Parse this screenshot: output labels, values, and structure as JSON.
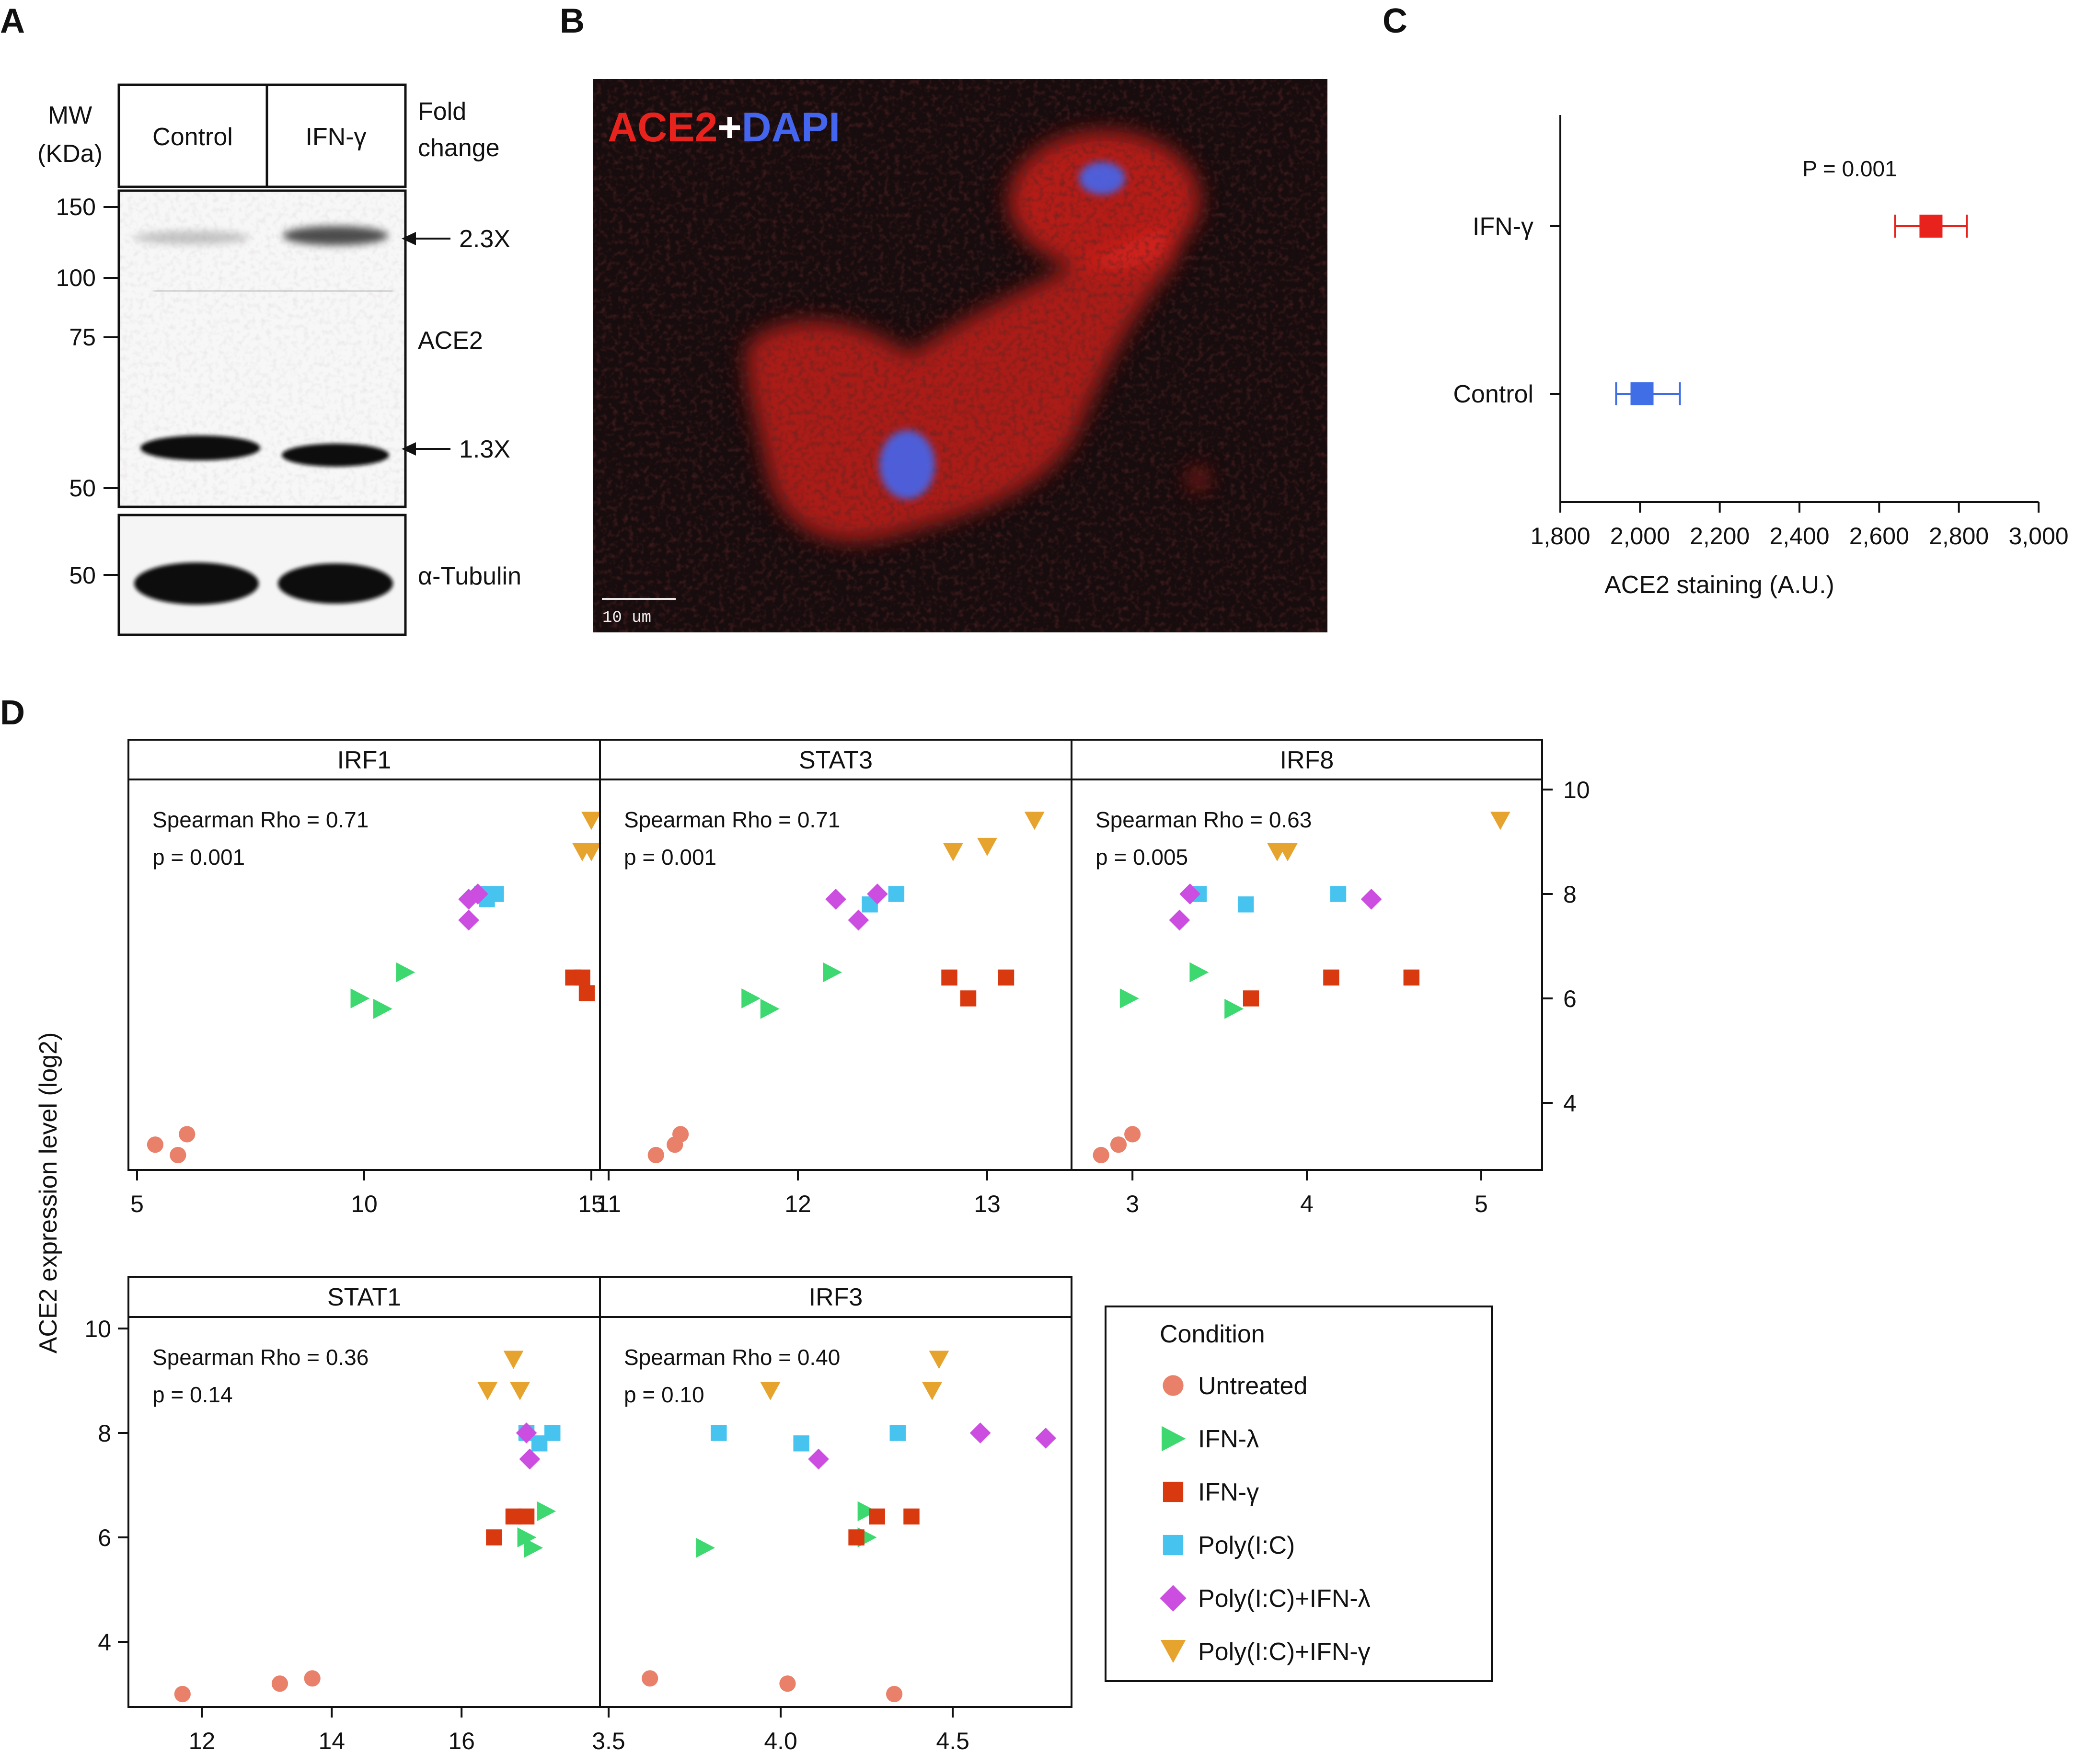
{
  "panels": {
    "a": "A",
    "b": "B",
    "c": "C",
    "d": "D"
  },
  "blot": {
    "mw_label_1": "MW",
    "mw_label_2": "(KDa)",
    "lane_control": "Control",
    "lane_ifn": "IFN-γ",
    "fold_label_1": "Fold",
    "fold_label_2": "change",
    "markers": [
      "150",
      "100",
      "75",
      "50"
    ],
    "tubulin_marker": "50",
    "fold_upper": "2.3X",
    "fold_lower": "1.3X",
    "protein": "ACE2",
    "loading_control": "α-Tubulin"
  },
  "micrograph": {
    "label_ace2": "ACE2",
    "label_plus": "+",
    "label_dapi": "DAPI",
    "scale_bar": "10 um",
    "colors": {
      "ace2": "#e8231e",
      "dapi": "#4466ee",
      "background": "#170c0e"
    }
  },
  "dotplot": {
    "p_value": "P = 0.001",
    "xlabel": "ACE2 staining (A.U.)",
    "categories": [
      "IFN-γ",
      "Control"
    ],
    "xlim": [
      1800,
      3000
    ],
    "xticks": [
      1800,
      2000,
      2200,
      2400,
      2600,
      2800,
      3000
    ],
    "xtick_labels": [
      "1,800",
      "2,000",
      "2,200",
      "2,400",
      "2,600",
      "2,800",
      "3,000"
    ],
    "series": [
      {
        "name": "IFN-γ",
        "mean": 2730,
        "low": 2640,
        "high": 2820,
        "color": "#e8231e"
      },
      {
        "name": "Control",
        "mean": 2005,
        "low": 1940,
        "high": 2100,
        "color": "#3f6ee6"
      }
    ]
  },
  "chart_data": {
    "type": "scatter",
    "ylabel": "ACE2 expression level (log2)",
    "ylim": [
      3,
      10.5
    ],
    "yticks": [
      4,
      6,
      8,
      10
    ],
    "legend": {
      "title": "Condition",
      "entries": [
        {
          "name": "Untreated",
          "marker": "circle",
          "color": "#e8806a"
        },
        {
          "name": "IFN-λ",
          "marker": "triangle-right",
          "color": "#3ed870"
        },
        {
          "name": "IFN-γ",
          "marker": "square",
          "color": "#d9390f"
        },
        {
          "name": "Poly(I:C)",
          "marker": "square",
          "color": "#47c3ef"
        },
        {
          "name": "Poly(I:C)+IFN-λ",
          "marker": "diamond",
          "color": "#cc4ee0"
        },
        {
          "name": "Poly(I:C)+IFN-γ",
          "marker": "triangle-down",
          "color": "#e6a32e"
        }
      ]
    },
    "panels": [
      {
        "title": "IRF1",
        "rho": "Spearman Rho = 0.71",
        "p": "p = 0.001",
        "xlim": [
          5,
          15
        ],
        "xticks": [
          5,
          10,
          15
        ],
        "points": {
          "Untreated": [
            [
              5.4,
              3.2
            ],
            [
              5.9,
              3.0
            ],
            [
              6.1,
              3.4
            ]
          ],
          "IFN-λ": [
            [
              9.9,
              6.0
            ],
            [
              10.4,
              5.8
            ],
            [
              10.9,
              6.5
            ]
          ],
          "IFN-γ": [
            [
              14.6,
              6.4
            ],
            [
              14.8,
              6.4
            ],
            [
              14.9,
              6.1
            ]
          ],
          "Poly(I:C)": [
            [
              12.6,
              8.0
            ],
            [
              12.7,
              7.9
            ],
            [
              12.9,
              8.0
            ]
          ],
          "Poly(I:C)+IFN-λ": [
            [
              12.3,
              7.9
            ],
            [
              12.5,
              8.0
            ],
            [
              12.3,
              7.5
            ]
          ],
          "Poly(I:C)+IFN-γ": [
            [
              15.0,
              9.4
            ],
            [
              14.8,
              8.8
            ],
            [
              15.0,
              8.8
            ]
          ]
        }
      },
      {
        "title": "STAT3",
        "rho": "Spearman Rho = 0.71",
        "p": "p = 0.001",
        "xlim": [
          11,
          13.4
        ],
        "xticks": [
          11,
          12,
          13
        ],
        "points": {
          "Untreated": [
            [
              11.25,
              3.0
            ],
            [
              11.35,
              3.2
            ],
            [
              11.38,
              3.4
            ]
          ],
          "IFN-λ": [
            [
              11.75,
              6.0
            ],
            [
              11.85,
              5.8
            ],
            [
              12.18,
              6.5
            ]
          ],
          "IFN-γ": [
            [
              12.8,
              6.4
            ],
            [
              12.9,
              6.0
            ],
            [
              13.1,
              6.4
            ]
          ],
          "Poly(I:C)": [
            [
              12.38,
              7.8
            ],
            [
              12.52,
              8.0
            ]
          ],
          "Poly(I:C)+IFN-λ": [
            [
              12.2,
              7.9
            ],
            [
              12.32,
              7.5
            ],
            [
              12.42,
              8.0
            ]
          ],
          "Poly(I:C)+IFN-γ": [
            [
              12.82,
              8.8
            ],
            [
              13.0,
              8.9
            ],
            [
              13.25,
              9.4
            ]
          ]
        }
      },
      {
        "title": "IRF8",
        "rho": "Spearman Rho = 0.63",
        "p": "p = 0.005",
        "xlim": [
          2.7,
          5.3
        ],
        "xticks": [
          3,
          4,
          5
        ],
        "points": {
          "Untreated": [
            [
              2.82,
              3.0
            ],
            [
              2.92,
              3.2
            ],
            [
              3.0,
              3.4
            ]
          ],
          "IFN-λ": [
            [
              2.98,
              6.0
            ],
            [
              3.38,
              6.5
            ],
            [
              3.58,
              5.8
            ]
          ],
          "IFN-γ": [
            [
              3.68,
              6.0
            ],
            [
              4.14,
              6.4
            ],
            [
              4.6,
              6.4
            ]
          ],
          "Poly(I:C)": [
            [
              3.38,
              8.0
            ],
            [
              3.65,
              7.8
            ],
            [
              4.18,
              8.0
            ]
          ],
          "Poly(I:C)+IFN-λ": [
            [
              3.27,
              7.5
            ],
            [
              3.33,
              8.0
            ],
            [
              4.37,
              7.9
            ]
          ],
          "Poly(I:C)+IFN-γ": [
            [
              3.83,
              8.8
            ],
            [
              3.89,
              8.8
            ],
            [
              5.11,
              9.4
            ]
          ]
        }
      },
      {
        "title": "STAT1",
        "rho": "Spearman Rho = 0.36",
        "p": "p = 0.14",
        "xlim": [
          11,
          18
        ],
        "xticks": [
          12,
          14,
          16
        ],
        "points": {
          "Untreated": [
            [
              11.7,
              3.0
            ],
            [
              13.2,
              3.2
            ],
            [
              13.7,
              3.3
            ]
          ],
          "IFN-λ": [
            [
              17.0,
              6.0
            ],
            [
              17.1,
              5.8
            ],
            [
              17.3,
              6.5
            ]
          ],
          "IFN-γ": [
            [
              16.5,
              6.0
            ],
            [
              16.8,
              6.4
            ],
            [
              17.0,
              6.4
            ]
          ],
          "Poly(I:C)": [
            [
              17.0,
              8.0
            ],
            [
              17.2,
              7.8
            ],
            [
              17.4,
              8.0
            ]
          ],
          "Poly(I:C)+IFN-λ": [
            [
              17.0,
              8.0
            ],
            [
              17.05,
              7.5
            ]
          ],
          "Poly(I:C)+IFN-γ": [
            [
              16.4,
              8.8
            ],
            [
              16.8,
              9.4
            ],
            [
              16.9,
              8.8
            ]
          ]
        }
      },
      {
        "title": "IRF3",
        "rho": "Spearman Rho = 0.40",
        "p": "p = 0.10",
        "xlim": [
          3.5,
          4.82
        ],
        "xticks": [
          3.5,
          4.0,
          4.5
        ],
        "xtick_labels": [
          "3.5",
          "4.0",
          "4.5"
        ],
        "points": {
          "Untreated": [
            [
              3.62,
              3.3
            ],
            [
              4.02,
              3.2
            ],
            [
              4.33,
              3.0
            ]
          ],
          "IFN-λ": [
            [
              3.78,
              5.8
            ],
            [
              4.25,
              6.0
            ],
            [
              4.25,
              6.5
            ]
          ],
          "IFN-γ": [
            [
              4.22,
              6.0
            ],
            [
              4.28,
              6.4
            ],
            [
              4.38,
              6.4
            ]
          ],
          "Poly(I:C)": [
            [
              3.82,
              8.0
            ],
            [
              4.06,
              7.8
            ],
            [
              4.34,
              8.0
            ]
          ],
          "Poly(I:C)+IFN-λ": [
            [
              4.11,
              7.5
            ],
            [
              4.58,
              8.0
            ],
            [
              4.77,
              7.9
            ]
          ],
          "Poly(I:C)+IFN-γ": [
            [
              3.97,
              8.8
            ],
            [
              4.44,
              8.8
            ],
            [
              4.46,
              9.4
            ]
          ]
        }
      }
    ]
  }
}
